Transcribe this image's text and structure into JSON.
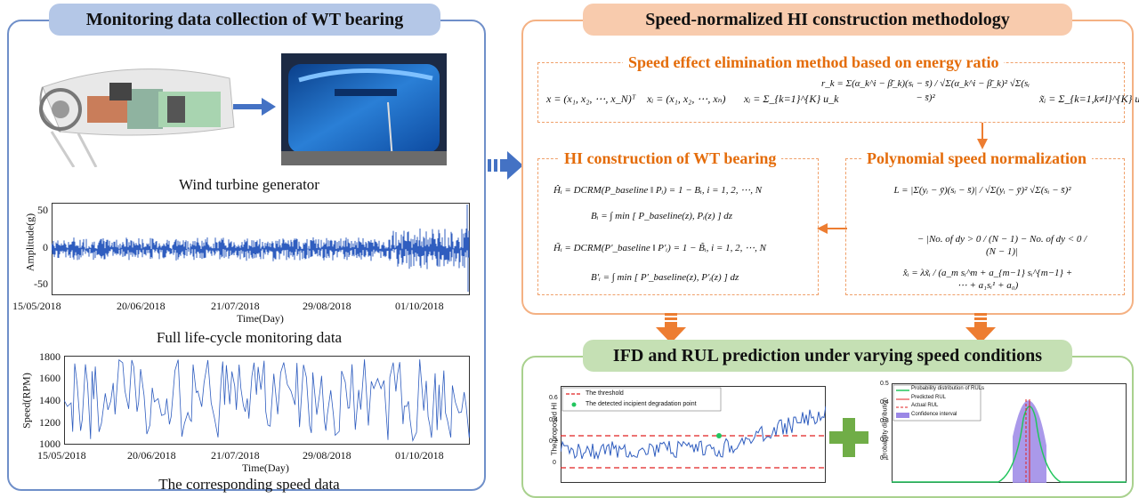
{
  "left": {
    "title": "Monitoring data collection of WT bearing",
    "turbine_caption": "Wind turbine generator",
    "plot1": {
      "ylabel": "Amplitude(g)",
      "xlabel": "Time(Day)",
      "yticks": [
        "50",
        "0",
        "-50"
      ],
      "xticks": [
        "15/05/2018",
        "20/06/2018",
        "21/07/2018",
        "29/08/2018",
        "01/10/2018"
      ],
      "caption": "Full life-cycle monitoring data"
    },
    "plot2": {
      "ylabel": "Speed(RPM)",
      "xlabel": "Time(Day)",
      "yticks": [
        "1800",
        "1600",
        "1400",
        "1200",
        "1000"
      ],
      "xticks": [
        "15/05/2018",
        "20/06/2018",
        "21/07/2018",
        "29/08/2018",
        "01/10/2018"
      ],
      "caption": "The corresponding speed data"
    }
  },
  "right_top": {
    "title": "Speed-normalized HI construction methodology",
    "energy": {
      "title": "Speed effect elimination method based on energy ratio",
      "eqs": [
        "x = (x₁, x₂, ⋯, x_N)ᵀ",
        "xᵢ = (x₁, x₂, ⋯, xₙ)",
        "xᵢ = Σ_{k=1}^{K} u_k",
        "r_k = Σ(α_k^i − β̄_k)(sᵢ − s̄) / √Σ(α_k^i − β̄_k)² √Σ(sᵢ − s̄)²",
        "x̃ᵢ = Σ_{k=1,k≠l}^{K} u_k"
      ]
    },
    "hi": {
      "title": "HI construction of WT bearing",
      "eqs": [
        "Ĥᵢ = DCRM(P_baseline ‖ Pᵢ) = 1 − Bᵢ,  i = 1, 2, ⋯, N",
        "Bᵢ = ∫ min [ P_baseline(z), Pᵢ(z) ] dz",
        "H̃ᵢ = DCRM(P′_baseline ‖ P′ᵢ) = 1 − B̃ᵢ,  i = 1, 2, ⋯, N",
        "B′ᵢ = ∫ min [ P′_baseline(z), P′ᵢ(z) ] dz"
      ]
    },
    "poly": {
      "title": "Polynomial speed normalization",
      "eqs": [
        "L = |Σ(yᵢ − ȳ)(sᵢ − s̄)| / √Σ(yᵢ − ȳ)² √Σ(sᵢ − s̄)²",
        "− |No. of dy > 0 / (N − 1) − No. of dy < 0 / (N − 1)|",
        "x̂ᵢ = λx̃ᵢ / (a_m sᵢ^m + a_{m−1} sᵢ^{m−1} + ⋯ + a₁sᵢ¹ + a₀)"
      ]
    }
  },
  "right_bottom": {
    "title": "IFD and RUL prediction under varying speed conditions",
    "hi_plot": {
      "ylabel": "The proposed HI",
      "yticks": [
        "0.6",
        "0.4",
        "0.2",
        "0"
      ],
      "legend": [
        "The threshold",
        "The detected incipient degradation point"
      ]
    },
    "rul_plot": {
      "ylabel": "Probability distribution",
      "yticks": [
        "0.5",
        "0.4",
        "0.3",
        "0.2",
        "0.1"
      ],
      "legend": [
        "Probability distribution of RULs",
        "Predicted RUL",
        "Actual RUL",
        "Confidence interval"
      ]
    }
  },
  "colors": {
    "left_border": "#6f8fc9",
    "left_title_bg": "#b4c7e7",
    "right_border": "#f4b183",
    "right_title_bg": "#f8cbad",
    "bottom_border": "#a9d18e",
    "bottom_title_bg": "#c5e0b4",
    "accent_orange": "#ed7d31",
    "signal_blue": "#2f5dbf",
    "plus_green": "#70ad47"
  }
}
